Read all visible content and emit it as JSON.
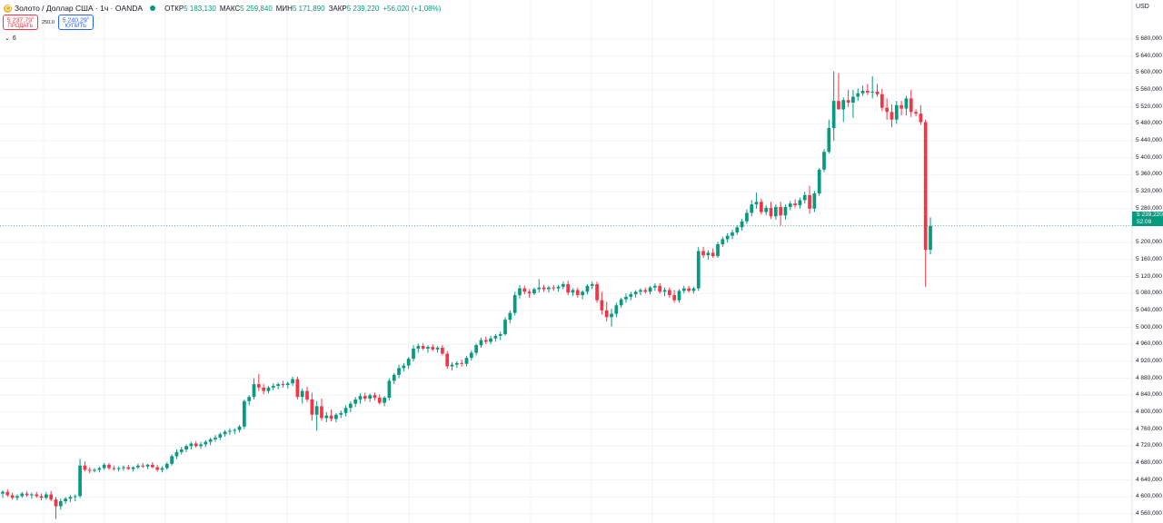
{
  "header": {
    "symbol_title": "Золото / Доллар США · 1ч · OANDA",
    "ohlc": [
      {
        "label": "ОТКР",
        "value": "5 183,130"
      },
      {
        "label": "МАКС",
        "value": "5 259,840"
      },
      {
        "label": "МИН",
        "value": "5 171,890"
      },
      {
        "label": "ЗАКР",
        "value": "5 239,220"
      }
    ],
    "change": "+56,020 (+1,08%)"
  },
  "trade": {
    "sell_price": "5 237,79",
    "sell_sup": "0",
    "sell_label": "ПРОДАТЬ",
    "spread": "250,0",
    "buy_price": "5 240,29",
    "buy_sup": "0",
    "buy_label": "КУПИТЬ"
  },
  "indicators_toggle": {
    "count": "6"
  },
  "axis": {
    "currency": "USD"
  },
  "last_price": {
    "value": "5 239,220",
    "countdown": "52:09"
  },
  "colors": {
    "up": "#089981",
    "down": "#f23645",
    "grid": "#f0f3fa"
  },
  "chart_data": {
    "type": "candlestick",
    "interval": "1h",
    "y_ticks": [
      "5 680,000",
      "5 640,000",
      "5 600,000",
      "5 560,000",
      "5 520,000",
      "5 480,000",
      "5 440,000",
      "5 400,000",
      "5 360,000",
      "5 320,000",
      "5 280,000",
      "5 240,000",
      "5 200,000",
      "5 160,000",
      "5 120,000",
      "5 080,000",
      "5 040,000",
      "5 000,000",
      "4 960,000",
      "4 920,000",
      "4 880,000",
      "4 840,000",
      "4 800,000",
      "4 760,000",
      "4 720,000",
      "4 680,000",
      "4 640,000",
      "4 600,000",
      "4 560,000"
    ],
    "ylim": [
      4545,
      5705
    ],
    "grid": true,
    "ohlc": [
      [
        4608,
        4616,
        4598,
        4612
      ],
      [
        4612,
        4618,
        4600,
        4604
      ],
      [
        4604,
        4610,
        4594,
        4598
      ],
      [
        4598,
        4606,
        4592,
        4602
      ],
      [
        4602,
        4612,
        4598,
        4608
      ],
      [
        4608,
        4614,
        4600,
        4604
      ],
      [
        4604,
        4610,
        4596,
        4606
      ],
      [
        4606,
        4612,
        4598,
        4602
      ],
      [
        4602,
        4608,
        4592,
        4598
      ],
      [
        4598,
        4612,
        4594,
        4606
      ],
      [
        4606,
        4614,
        4590,
        4594
      ],
      [
        4594,
        4600,
        4548,
        4578
      ],
      [
        4578,
        4596,
        4570,
        4590
      ],
      [
        4590,
        4600,
        4584,
        4596
      ],
      [
        4596,
        4604,
        4588,
        4600
      ],
      [
        4600,
        4606,
        4590,
        4602
      ],
      [
        4602,
        4690,
        4598,
        4674
      ],
      [
        4674,
        4684,
        4660,
        4664
      ],
      [
        4664,
        4670,
        4656,
        4662
      ],
      [
        4662,
        4668,
        4658,
        4664
      ],
      [
        4664,
        4672,
        4658,
        4668
      ],
      [
        4668,
        4680,
        4664,
        4676
      ],
      [
        4676,
        4680,
        4664,
        4668
      ],
      [
        4668,
        4674,
        4662,
        4666
      ],
      [
        4666,
        4672,
        4660,
        4668
      ],
      [
        4668,
        4674,
        4662,
        4670
      ],
      [
        4670,
        4676,
        4664,
        4666
      ],
      [
        4666,
        4672,
        4660,
        4670
      ],
      [
        4670,
        4678,
        4666,
        4674
      ],
      [
        4674,
        4680,
        4668,
        4672
      ],
      [
        4672,
        4678,
        4666,
        4676
      ],
      [
        4676,
        4682,
        4668,
        4670
      ],
      [
        4670,
        4676,
        4660,
        4664
      ],
      [
        4664,
        4672,
        4658,
        4668
      ],
      [
        4668,
        4682,
        4664,
        4678
      ],
      [
        4678,
        4700,
        4674,
        4696
      ],
      [
        4696,
        4712,
        4690,
        4706
      ],
      [
        4706,
        4718,
        4700,
        4712
      ],
      [
        4712,
        4724,
        4706,
        4720
      ],
      [
        4720,
        4730,
        4712,
        4726
      ],
      [
        4726,
        4732,
        4716,
        4720
      ],
      [
        4720,
        4730,
        4714,
        4724
      ],
      [
        4724,
        4734,
        4718,
        4730
      ],
      [
        4730,
        4740,
        4722,
        4736
      ],
      [
        4736,
        4746,
        4730,
        4740
      ],
      [
        4740,
        4752,
        4734,
        4748
      ],
      [
        4748,
        4758,
        4742,
        4754
      ],
      [
        4754,
        4762,
        4746,
        4756
      ],
      [
        4756,
        4762,
        4748,
        4758
      ],
      [
        4758,
        4770,
        4752,
        4766
      ],
      [
        4766,
        4830,
        4760,
        4826
      ],
      [
        4826,
        4840,
        4816,
        4836
      ],
      [
        4836,
        4880,
        4830,
        4866
      ],
      [
        4866,
        4890,
        4850,
        4858
      ],
      [
        4858,
        4866,
        4842,
        4850
      ],
      [
        4850,
        4862,
        4844,
        4858
      ],
      [
        4858,
        4868,
        4852,
        4862
      ],
      [
        4862,
        4870,
        4854,
        4866
      ],
      [
        4866,
        4874,
        4858,
        4864
      ],
      [
        4864,
        4872,
        4856,
        4868
      ],
      [
        4868,
        4884,
        4862,
        4878
      ],
      [
        4878,
        4884,
        4830,
        4836
      ],
      [
        4836,
        4856,
        4820,
        4850
      ],
      [
        4850,
        4860,
        4824,
        4830
      ],
      [
        4830,
        4846,
        4780,
        4794
      ],
      [
        4794,
        4826,
        4756,
        4814
      ],
      [
        4814,
        4832,
        4780,
        4786
      ],
      [
        4786,
        4800,
        4776,
        4792
      ],
      [
        4792,
        4806,
        4778,
        4784
      ],
      [
        4784,
        4798,
        4776,
        4794
      ],
      [
        4794,
        4804,
        4786,
        4798
      ],
      [
        4798,
        4816,
        4790,
        4810
      ],
      [
        4810,
        4826,
        4800,
        4820
      ],
      [
        4820,
        4836,
        4812,
        4830
      ],
      [
        4830,
        4844,
        4820,
        4838
      ],
      [
        4838,
        4846,
        4826,
        4832
      ],
      [
        4832,
        4844,
        4824,
        4840
      ],
      [
        4840,
        4846,
        4828,
        4834
      ],
      [
        4834,
        4842,
        4818,
        4822
      ],
      [
        4822,
        4838,
        4814,
        4834
      ],
      [
        4834,
        4880,
        4828,
        4874
      ],
      [
        4874,
        4892,
        4866,
        4888
      ],
      [
        4888,
        4912,
        4880,
        4904
      ],
      [
        4904,
        4916,
        4896,
        4910
      ],
      [
        4910,
        4930,
        4902,
        4926
      ],
      [
        4926,
        4958,
        4920,
        4950
      ],
      [
        4950,
        4962,
        4940,
        4956
      ],
      [
        4956,
        4962,
        4946,
        4950
      ],
      [
        4950,
        4958,
        4940,
        4954
      ],
      [
        4954,
        4960,
        4944,
        4948
      ],
      [
        4948,
        4956,
        4940,
        4952
      ],
      [
        4952,
        4958,
        4934,
        4938
      ],
      [
        4938,
        4944,
        4902,
        4908
      ],
      [
        4908,
        4918,
        4898,
        4912
      ],
      [
        4912,
        4920,
        4904,
        4916
      ],
      [
        4916,
        4924,
        4908,
        4914
      ],
      [
        4914,
        4932,
        4908,
        4928
      ],
      [
        4928,
        4946,
        4922,
        4940
      ],
      [
        4940,
        4962,
        4934,
        4958
      ],
      [
        4958,
        4976,
        4952,
        4970
      ],
      [
        4970,
        4978,
        4960,
        4966
      ],
      [
        4966,
        4980,
        4960,
        4974
      ],
      [
        4974,
        4984,
        4966,
        4980
      ],
      [
        4980,
        4990,
        4970,
        4984
      ],
      [
        4984,
        5024,
        4980,
        5018
      ],
      [
        5018,
        5040,
        5010,
        5034
      ],
      [
        5034,
        5084,
        5028,
        5076
      ],
      [
        5076,
        5100,
        5068,
        5092
      ],
      [
        5092,
        5098,
        5078,
        5084
      ],
      [
        5084,
        5090,
        5070,
        5080
      ],
      [
        5080,
        5094,
        5076,
        5090
      ],
      [
        5090,
        5114,
        5082,
        5094
      ],
      [
        5094,
        5100,
        5084,
        5090
      ],
      [
        5090,
        5098,
        5082,
        5094
      ],
      [
        5094,
        5100,
        5086,
        5092
      ],
      [
        5092,
        5100,
        5084,
        5096
      ],
      [
        5096,
        5108,
        5090,
        5102
      ],
      [
        5102,
        5110,
        5076,
        5082
      ],
      [
        5082,
        5092,
        5074,
        5088
      ],
      [
        5088,
        5094,
        5070,
        5076
      ],
      [
        5076,
        5088,
        5066,
        5084
      ],
      [
        5084,
        5102,
        5078,
        5098
      ],
      [
        5098,
        5108,
        5090,
        5102
      ],
      [
        5102,
        5108,
        5058,
        5064
      ],
      [
        5064,
        5084,
        5030,
        5040
      ],
      [
        5040,
        5060,
        5014,
        5024
      ],
      [
        5024,
        5044,
        5002,
        5032
      ],
      [
        5032,
        5058,
        5024,
        5052
      ],
      [
        5052,
        5070,
        5046,
        5066
      ],
      [
        5066,
        5080,
        5058,
        5072
      ],
      [
        5072,
        5084,
        5064,
        5078
      ],
      [
        5078,
        5088,
        5070,
        5084
      ],
      [
        5084,
        5092,
        5076,
        5088
      ],
      [
        5088,
        5094,
        5080,
        5084
      ],
      [
        5084,
        5098,
        5078,
        5094
      ],
      [
        5094,
        5104,
        5086,
        5098
      ],
      [
        5098,
        5104,
        5080,
        5084
      ],
      [
        5084,
        5094,
        5074,
        5088
      ],
      [
        5088,
        5094,
        5070,
        5076
      ],
      [
        5076,
        5088,
        5058,
        5064
      ],
      [
        5064,
        5090,
        5058,
        5086
      ],
      [
        5086,
        5098,
        5080,
        5092
      ],
      [
        5092,
        5098,
        5082,
        5086
      ],
      [
        5086,
        5096,
        5080,
        5092
      ],
      [
        5092,
        5190,
        5086,
        5180
      ],
      [
        5180,
        5190,
        5164,
        5170
      ],
      [
        5170,
        5182,
        5160,
        5176
      ],
      [
        5176,
        5186,
        5164,
        5168
      ],
      [
        5168,
        5202,
        5164,
        5196
      ],
      [
        5196,
        5214,
        5190,
        5208
      ],
      [
        5208,
        5222,
        5200,
        5216
      ],
      [
        5216,
        5230,
        5208,
        5224
      ],
      [
        5224,
        5240,
        5218,
        5236
      ],
      [
        5236,
        5256,
        5228,
        5250
      ],
      [
        5250,
        5278,
        5244,
        5270
      ],
      [
        5270,
        5300,
        5262,
        5290
      ],
      [
        5290,
        5318,
        5280,
        5296
      ],
      [
        5296,
        5304,
        5266,
        5272
      ],
      [
        5272,
        5288,
        5264,
        5282
      ],
      [
        5282,
        5296,
        5256,
        5262
      ],
      [
        5262,
        5290,
        5254,
        5284
      ],
      [
        5284,
        5296,
        5240,
        5264
      ],
      [
        5264,
        5290,
        5254,
        5284
      ],
      [
        5284,
        5298,
        5276,
        5292
      ],
      [
        5292,
        5302,
        5282,
        5288
      ],
      [
        5288,
        5306,
        5280,
        5300
      ],
      [
        5300,
        5320,
        5292,
        5312
      ],
      [
        5312,
        5334,
        5268,
        5280
      ],
      [
        5280,
        5322,
        5272,
        5316
      ],
      [
        5316,
        5376,
        5310,
        5372
      ],
      [
        5372,
        5420,
        5366,
        5414
      ],
      [
        5414,
        5490,
        5410,
        5470
      ],
      [
        5470,
        5604,
        5440,
        5534
      ],
      [
        5534,
        5600,
        5520,
        5514
      ],
      [
        5514,
        5542,
        5484,
        5536
      ],
      [
        5536,
        5560,
        5520,
        5530
      ],
      [
        5530,
        5560,
        5494,
        5544
      ],
      [
        5544,
        5564,
        5534,
        5552
      ],
      [
        5552,
        5570,
        5546,
        5558
      ],
      [
        5558,
        5574,
        5548,
        5554
      ],
      [
        5554,
        5592,
        5540,
        5556
      ],
      [
        5556,
        5574,
        5544,
        5550
      ],
      [
        5550,
        5562,
        5510,
        5518
      ],
      [
        5518,
        5540,
        5490,
        5508
      ],
      [
        5508,
        5526,
        5472,
        5490
      ],
      [
        5490,
        5534,
        5480,
        5524
      ],
      [
        5524,
        5534,
        5500,
        5516
      ],
      [
        5516,
        5546,
        5500,
        5540
      ],
      [
        5540,
        5560,
        5496,
        5508
      ],
      [
        5508,
        5514,
        5498,
        5504
      ],
      [
        5504,
        5524,
        5478,
        5484
      ],
      [
        5484,
        5490,
        5096,
        5183
      ],
      [
        5183,
        5259.84,
        5171.89,
        5239.22
      ]
    ]
  }
}
